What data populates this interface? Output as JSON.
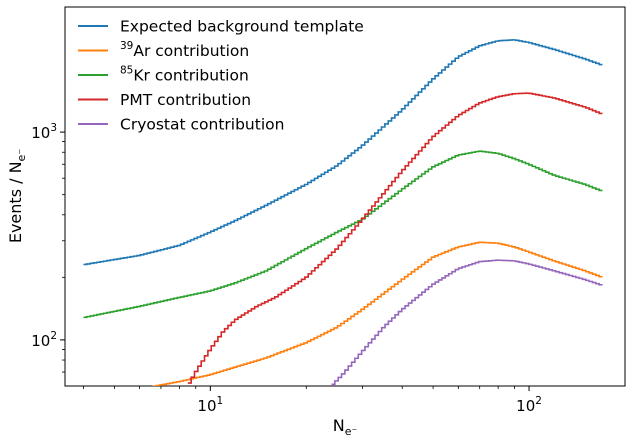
{
  "chart_data": {
    "type": "line",
    "step": true,
    "xscale": "log",
    "yscale": "log",
    "xlim": [
      3.5,
      200
    ],
    "ylim": [
      60,
      4000
    ],
    "xlabel_main": "N",
    "xlabel_sub": "e⁻",
    "ylabel_main": "Events / N",
    "ylabel_sub": "e⁻",
    "x_ticks": [
      {
        "value": 10,
        "base": "10",
        "exp": "1"
      },
      {
        "value": 100,
        "base": "10",
        "exp": "2"
      }
    ],
    "y_ticks": [
      {
        "value": 100,
        "base": "10",
        "exp": "2"
      },
      {
        "value": 1000,
        "base": "10",
        "exp": "3"
      }
    ],
    "legend_position": "top-left",
    "grid": false,
    "series": [
      {
        "name": "Expected background template",
        "color": "#1f77b4",
        "x": [
          4,
          6,
          8,
          10,
          12,
          15,
          20,
          25,
          30,
          40,
          50,
          60,
          70,
          80,
          90,
          100,
          120,
          150,
          170
        ],
        "y": [
          230,
          255,
          285,
          330,
          375,
          445,
          560,
          690,
          860,
          1280,
          1800,
          2300,
          2600,
          2750,
          2780,
          2700,
          2500,
          2250,
          2100
        ]
      },
      {
        "name": "Ar contribution",
        "sup": "39",
        "color": "#ff7f0e",
        "x": [
          6,
          8,
          10,
          12,
          15,
          20,
          25,
          30,
          40,
          50,
          60,
          70,
          80,
          90,
          100,
          120,
          150,
          170
        ],
        "y": [
          58,
          63,
          68,
          74,
          82,
          97,
          115,
          140,
          195,
          250,
          280,
          295,
          292,
          280,
          265,
          240,
          215,
          200
        ]
      },
      {
        "name": "Kr contribution",
        "sup": "85",
        "color": "#2ca02c",
        "x": [
          4,
          6,
          8,
          10,
          12,
          15,
          20,
          25,
          30,
          40,
          50,
          60,
          70,
          80,
          90,
          100,
          120,
          150,
          170
        ],
        "y": [
          128,
          145,
          160,
          172,
          188,
          215,
          275,
          330,
          380,
          530,
          680,
          775,
          810,
          790,
          745,
          700,
          620,
          560,
          520
        ]
      },
      {
        "name": "PMT contribution",
        "color": "#d62728",
        "x": [
          8.5,
          9,
          10,
          11,
          12,
          14,
          16,
          20,
          25,
          30,
          40,
          50,
          60,
          70,
          80,
          90,
          100,
          120,
          150,
          170
        ],
        "y": [
          60,
          70,
          90,
          110,
          125,
          145,
          160,
          200,
          275,
          380,
          650,
          950,
          1200,
          1380,
          1480,
          1530,
          1540,
          1460,
          1320,
          1220
        ]
      },
      {
        "name": "Cryostat contribution",
        "color": "#9467bd",
        "x": [
          24,
          26,
          30,
          35,
          40,
          50,
          60,
          70,
          80,
          90,
          100,
          120,
          150,
          170
        ],
        "y": [
          60,
          68,
          88,
          115,
          140,
          185,
          220,
          238,
          242,
          240,
          232,
          215,
          195,
          183
        ]
      }
    ]
  }
}
